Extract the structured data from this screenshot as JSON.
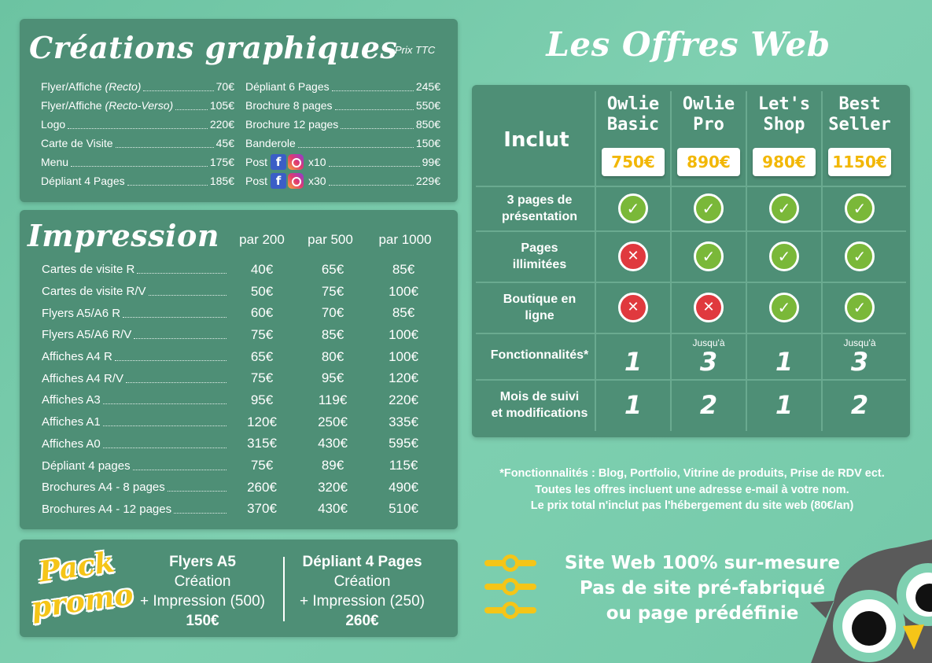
{
  "creations": {
    "title": "Créations graphiques",
    "prix_label": "Prix TTC",
    "left": [
      {
        "label": "Flyer/Affiche",
        "sub": "(Recto)",
        "price": "70€"
      },
      {
        "label": "Flyer/Affiche",
        "sub": "(Recto-Verso)",
        "price": "105€"
      },
      {
        "label": "Logo",
        "sub": "",
        "price": "220€"
      },
      {
        "label": "Carte de Visite",
        "sub": "",
        "price": "45€"
      },
      {
        "label": "Menu",
        "sub": "",
        "price": "175€"
      },
      {
        "label": "Dépliant 4 Pages",
        "sub": "",
        "price": "185€"
      }
    ],
    "right": [
      {
        "label": "Dépliant 6 Pages",
        "price": "245€"
      },
      {
        "label": "Brochure 8 pages",
        "price": "550€"
      },
      {
        "label": "Brochure 12 pages",
        "price": "850€"
      },
      {
        "label": "Banderole",
        "price": "150€"
      },
      {
        "label": "Post",
        "qty": "x10",
        "price": "99€"
      },
      {
        "label": "Post",
        "qty": "x30",
        "price": "229€"
      }
    ]
  },
  "impression": {
    "title": "Impression",
    "headers": [
      "par 200",
      "par 500",
      "par 1000"
    ],
    "rows": [
      {
        "label": "Cartes de visite R",
        "values": [
          "40€",
          "65€",
          "85€"
        ]
      },
      {
        "label": "Cartes de visite R/V",
        "values": [
          "50€",
          "75€",
          "100€"
        ]
      },
      {
        "label": "Flyers A5/A6 R",
        "values": [
          "60€",
          "70€",
          "85€"
        ]
      },
      {
        "label": "Flyers A5/A6 R/V",
        "values": [
          "75€",
          "85€",
          "100€"
        ]
      },
      {
        "label": "Affiches A4 R",
        "values": [
          "65€",
          "80€",
          "100€"
        ]
      },
      {
        "label": "Affiches A4 R/V",
        "values": [
          "75€",
          "95€",
          "120€"
        ]
      },
      {
        "label": "Affiches A3",
        "values": [
          "95€",
          "119€",
          "220€"
        ]
      },
      {
        "label": "Affiches A1",
        "values": [
          "120€",
          "250€",
          "335€"
        ]
      },
      {
        "label": "Affiches A0",
        "values": [
          "315€",
          "430€",
          "595€"
        ]
      },
      {
        "label": "Dépliant 4 pages",
        "values": [
          "75€",
          "89€",
          "115€"
        ]
      },
      {
        "label": "Brochures A4 - 8 pages",
        "values": [
          "260€",
          "320€",
          "490€"
        ]
      },
      {
        "label": "Brochures A4 - 12 pages",
        "values": [
          "370€",
          "430€",
          "510€"
        ]
      }
    ]
  },
  "promo": {
    "badge_line1": "Pack",
    "badge_line2": "promo",
    "col1": {
      "title": "Flyers A5",
      "line1": "Création",
      "line2": "+ Impression (500)",
      "price": "150€"
    },
    "col2": {
      "title": "Dépliant 4 Pages",
      "line1": "Création",
      "line2": "+ Impression (250)",
      "price": "260€"
    }
  },
  "web": {
    "title": "Les Offres Web",
    "inclut": "Inclut",
    "plans": [
      {
        "name1": "Owlie",
        "name2": "Basic",
        "price": "750€"
      },
      {
        "name1": "Owlie",
        "name2": "Pro",
        "price": "890€"
      },
      {
        "name1": "Let's",
        "name2": "Shop",
        "price": "980€"
      },
      {
        "name1": "Best",
        "name2": "Seller",
        "price": "1150€"
      }
    ],
    "features": [
      {
        "l1": "3 pages de",
        "l2": "présentation",
        "cells": [
          "ok",
          "ok",
          "ok",
          "ok"
        ]
      },
      {
        "l1": "Pages",
        "l2": "illimitées",
        "cells": [
          "no",
          "ok",
          "ok",
          "ok"
        ]
      },
      {
        "l1": "Boutique en",
        "l2": "ligne",
        "cells": [
          "no",
          "no",
          "ok",
          "ok"
        ]
      }
    ],
    "fonctionnalites": {
      "label": "Fonctionnalités*",
      "prefix": [
        "",
        "Jusqu'à",
        "",
        "Jusqu'à"
      ],
      "values": [
        "1",
        "3",
        "1",
        "3"
      ]
    },
    "suivi": {
      "l1": "Mois de suivi",
      "l2": "et modifications",
      "values": [
        "1",
        "2",
        "1",
        "2"
      ]
    },
    "notes": [
      "*Fonctionnalités : Blog, Portfolio, Vitrine de produits, Prise de RDV ect.",
      "Toutes les offres incluent une adresse e-mail à votre nom.",
      "Le prix total n'inclut pas l'hébergement du site web (80€/an)"
    ],
    "tagline": [
      "Site Web 100% sur-mesure",
      "Pas de site pré-fabriqué",
      "ou page prédéfinie"
    ]
  },
  "colors": {
    "panel": "#4e8f76",
    "accent": "#f5c518",
    "ok": "#7ab839",
    "no": "#e0393e",
    "bg": "#74c9a9"
  }
}
